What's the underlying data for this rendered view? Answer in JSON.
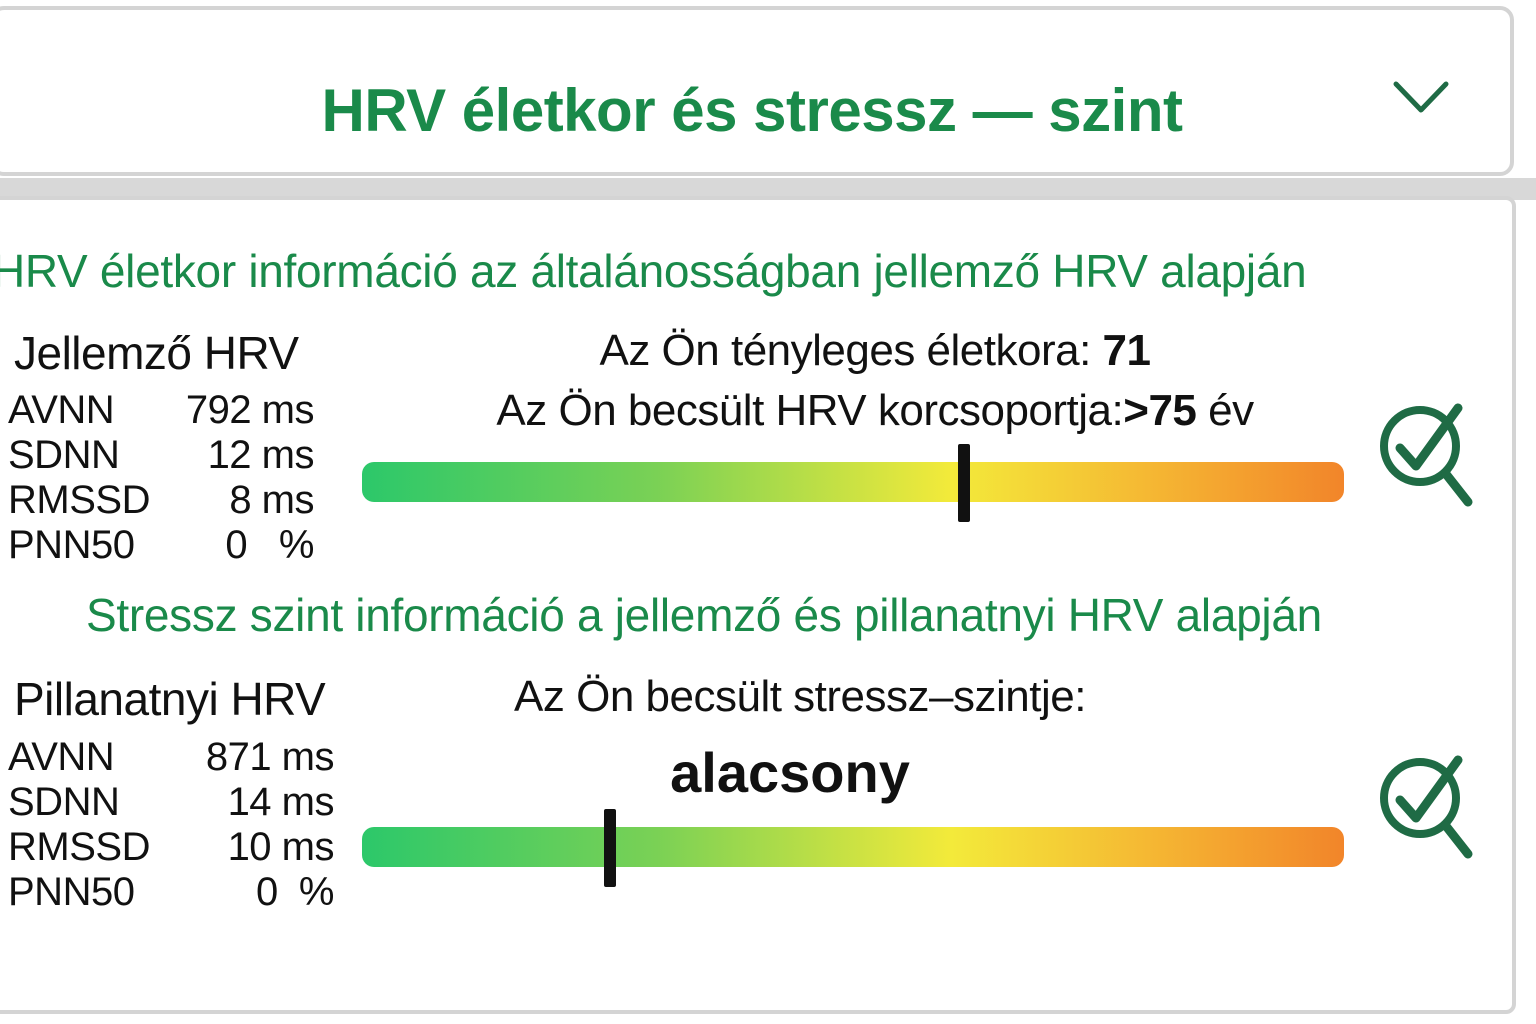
{
  "header": {
    "title": "HRV életkor és stressz — szint"
  },
  "age_section": {
    "heading": "HRV életkor információ az általánosságban jellemző HRV alapján",
    "block_title": "Jellemző HRV",
    "metrics": [
      {
        "label": "AVNN",
        "value": "792 ms"
      },
      {
        "label": "SDNN",
        "value": "12 ms"
      },
      {
        "label": "RMSSD",
        "value": "8 ms"
      },
      {
        "label": "PNN50",
        "value": "0   %"
      }
    ],
    "actual_age_label": "Az Ön tényleges életkora: ",
    "actual_age_value": "71",
    "group_label": "Az Ön becsült HRV korcsoportja:",
    "group_value": ">75",
    "group_unit": " év",
    "marker_fraction": 0.613
  },
  "stress_section": {
    "heading": "Stressz szint információ a jellemző és pillanatnyi HRV alapján",
    "block_title": "Pillanatnyi HRV",
    "metrics": [
      {
        "label": "AVNN",
        "value": "871 ms"
      },
      {
        "label": "SDNN",
        "value": "14 ms"
      },
      {
        "label": "RMSSD",
        "value": "10 ms"
      },
      {
        "label": "PNN50",
        "value": "0  %"
      }
    ],
    "stress_label": "Az Ön becsült stressz–szintje:",
    "stress_value": "alacsony",
    "marker_fraction": 0.253
  },
  "colors": {
    "accent_green": "#1a8a4a",
    "icon_green": "#1f6b45",
    "bar_start": "#2cc86a",
    "bar_mid": "#f3ea3a",
    "bar_end": "#f2852a"
  },
  "icons": {
    "chevron": "chevron-down-icon",
    "check": "check-magnifier-icon"
  }
}
